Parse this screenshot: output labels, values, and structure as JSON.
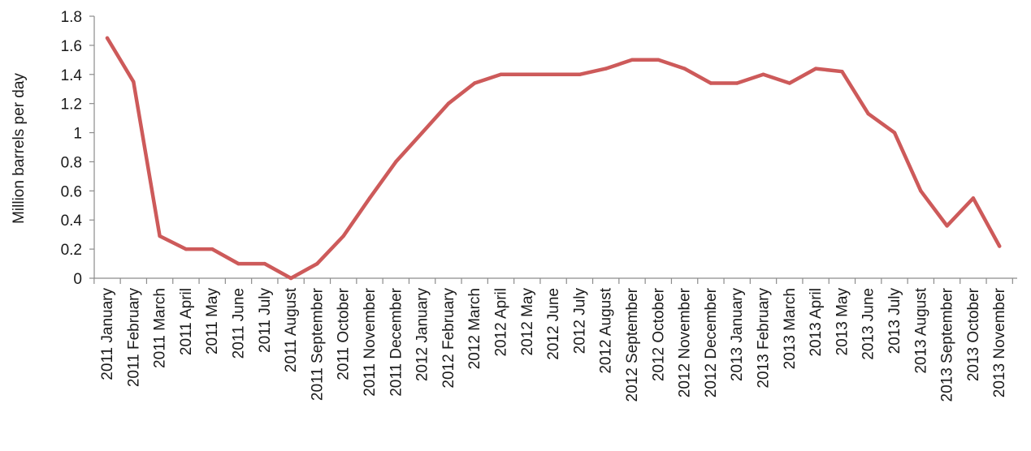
{
  "colors": {
    "series": "#cd5a5a",
    "axis": "#8c8c8c",
    "text": "#1a1a1a"
  },
  "chart_data": {
    "type": "line",
    "title": "",
    "xlabel": "",
    "ylabel": "Million barrels per day",
    "ylim": [
      0,
      1.8
    ],
    "yticks": [
      "0",
      "0.2",
      "0.4",
      "0.6",
      "0.8",
      "1",
      "1.2",
      "1.4",
      "1.6",
      "1.8"
    ],
    "grid": false,
    "legend": "none",
    "categories": [
      "2011 January",
      "2011 February",
      "2011 March",
      "2011 April",
      "2011 May",
      "2011 June",
      "2011 July",
      "2011 August",
      "2011 September",
      "2011 October",
      "2011 November",
      "2011 December",
      "2012 January",
      "2012 February",
      "2012 March",
      "2012 April",
      "2012 May",
      "2012 June",
      "2012 July",
      "2012 August",
      "2012 September",
      "2012 October",
      "2012 November",
      "2012 December",
      "2013 January",
      "2013 February",
      "2013 March",
      "2013 April",
      "2013 May",
      "2013 June",
      "2013 July",
      "2013 August",
      "2013 September",
      "2013 October",
      "2013 November"
    ],
    "series": [
      {
        "values": [
          1.65,
          1.35,
          0.29,
          0.2,
          0.2,
          0.1,
          0.1,
          0.0,
          0.1,
          0.29,
          0.55,
          0.8,
          1.0,
          1.2,
          1.34,
          1.4,
          1.4,
          1.4,
          1.4,
          1.44,
          1.5,
          1.5,
          1.44,
          1.34,
          1.34,
          1.4,
          1.34,
          1.44,
          1.42,
          1.13,
          1.0,
          0.6,
          0.36,
          0.55,
          0.22
        ]
      }
    ]
  }
}
